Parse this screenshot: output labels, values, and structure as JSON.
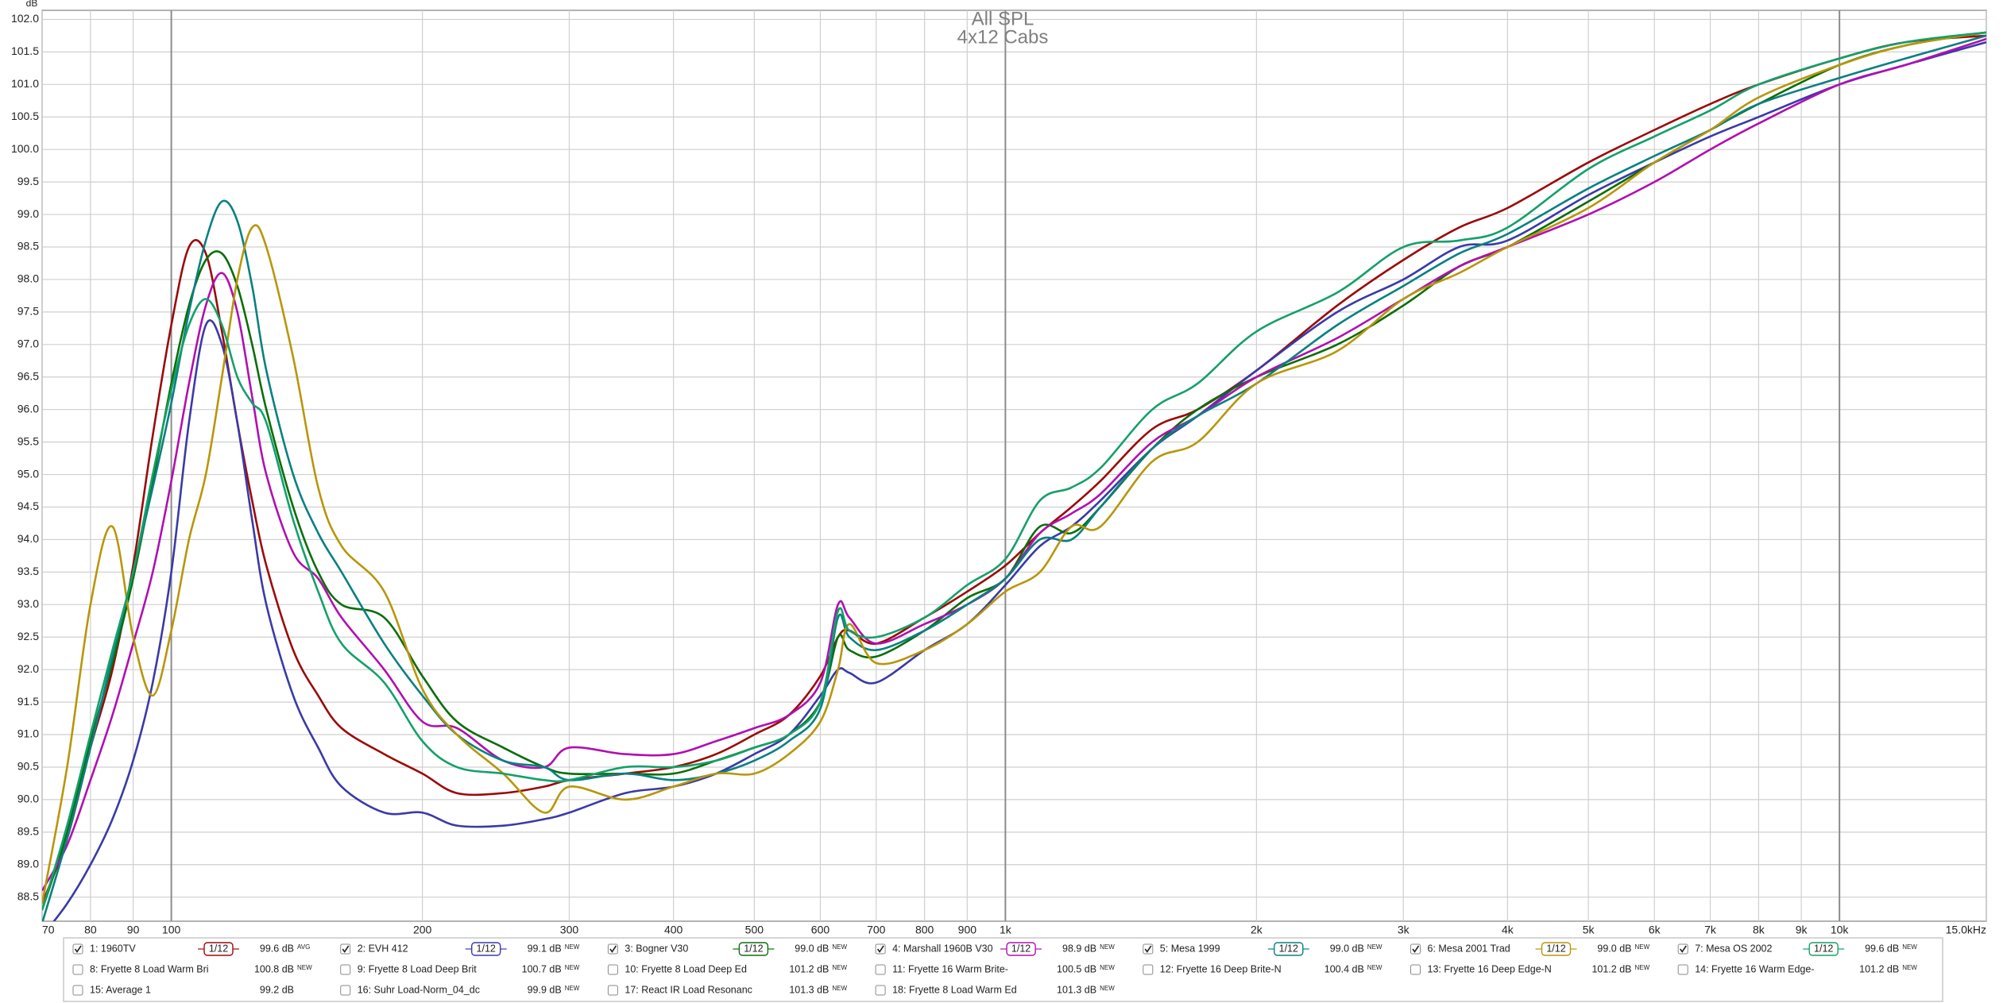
{
  "chart_data": {
    "type": "line",
    "title": "All SPL",
    "subtitle": "4x12 Cabs",
    "y_unit": "dB",
    "log_x": true,
    "grid": true,
    "xlim": [
      70,
      15000
    ],
    "ylim": [
      88.13,
      102.14
    ],
    "xticks": [
      70,
      80,
      90,
      100,
      200,
      300,
      400,
      500,
      600,
      700,
      800,
      900,
      {
        "value": 1000,
        "label": "1k"
      },
      {
        "value": 2000,
        "label": "2k"
      },
      {
        "value": 3000,
        "label": "3k"
      },
      {
        "value": 4000,
        "label": "4k"
      },
      {
        "value": 5000,
        "label": "5k"
      },
      {
        "value": 6000,
        "label": "6k"
      },
      {
        "value": 7000,
        "label": "7k"
      },
      {
        "value": 8000,
        "label": "8k"
      },
      {
        "value": 9000,
        "label": "9k"
      },
      {
        "value": 10000,
        "label": "10k"
      },
      {
        "value": 15000,
        "label": "15.0kHz"
      }
    ],
    "yticks": [
      88.5,
      {
        "value": 89,
        "label": "89.0"
      },
      89.5,
      {
        "value": 90,
        "label": "90.0"
      },
      90.5,
      {
        "value": 91,
        "label": "91.0"
      },
      91.5,
      {
        "value": 92,
        "label": "92.0"
      },
      92.5,
      {
        "value": 93,
        "label": "93.0"
      },
      93.5,
      {
        "value": 94,
        "label": "94.0"
      },
      94.5,
      {
        "value": 95,
        "label": "95.0"
      },
      95.5,
      {
        "value": 96,
        "label": "96.0"
      },
      96.5,
      {
        "value": 97,
        "label": "97.0"
      },
      97.5,
      {
        "value": 98,
        "label": "98.0"
      },
      98.5,
      {
        "value": 99,
        "label": "99.0"
      },
      99.5,
      {
        "value": 100,
        "label": "100.0"
      },
      100.5,
      {
        "value": 101,
        "label": "101.0"
      },
      101.5,
      {
        "value": 102,
        "label": "102.0"
      }
    ],
    "x": [
      70,
      75,
      80,
      85,
      90,
      95,
      100,
      105,
      110,
      115,
      120,
      125,
      130,
      140,
      150,
      160,
      180,
      200,
      220,
      250,
      280,
      300,
      350,
      400,
      450,
      500,
      550,
      600,
      630,
      650,
      700,
      800,
      900,
      1000,
      1100,
      1200,
      1300,
      1500,
      1700,
      2000,
      2500,
      3000,
      3500,
      4000,
      5000,
      6000,
      7000,
      8000,
      10000,
      12000,
      15000
    ],
    "series": [
      {
        "name": "1: 1960TV",
        "color": "#9b0a0a",
        "checked": true,
        "smoothing": "1/12",
        "level": "99.6 dB",
        "tag": "AVG",
        "values": [
          88.4,
          89.4,
          90.8,
          92.0,
          93.6,
          95.6,
          97.3,
          98.5,
          98.4,
          97.2,
          95.8,
          94.6,
          93.6,
          92.3,
          91.6,
          91.1,
          90.7,
          90.4,
          90.1,
          90.1,
          90.2,
          90.3,
          90.4,
          90.5,
          90.7,
          91.0,
          91.3,
          91.9,
          92.5,
          92.6,
          92.4,
          92.8,
          93.2,
          93.6,
          94.1,
          94.5,
          94.9,
          95.7,
          96.0,
          96.6,
          97.6,
          98.3,
          98.8,
          99.1,
          99.8,
          100.3,
          100.7,
          101.0,
          101.4,
          101.65,
          101.75
        ]
      },
      {
        "name": "2: EVH 412",
        "color": "#3a3aa8",
        "checked": true,
        "smoothing": "1/12",
        "level": "99.1 dB",
        "tag": "NEW",
        "values": [
          87.9,
          88.4,
          89.0,
          89.7,
          90.6,
          91.8,
          93.5,
          95.8,
          97.3,
          97.0,
          95.8,
          94.3,
          93.0,
          91.6,
          90.8,
          90.2,
          89.8,
          89.8,
          89.6,
          89.6,
          89.7,
          89.8,
          90.1,
          90.2,
          90.4,
          90.7,
          91.0,
          91.6,
          92.0,
          91.95,
          91.8,
          92.3,
          92.7,
          93.3,
          93.9,
          94.2,
          94.6,
          95.4,
          95.9,
          96.6,
          97.5,
          98.0,
          98.5,
          98.6,
          99.3,
          99.8,
          100.2,
          100.5,
          101.0,
          101.3,
          101.65
        ]
      },
      {
        "name": "3: Bogner V30",
        "color": "#0a6e0a",
        "checked": true,
        "smoothing": "1/12",
        "level": "99.0 dB",
        "tag": "NEW",
        "values": [
          88.3,
          89.5,
          90.9,
          92.1,
          93.4,
          94.9,
          96.4,
          97.6,
          98.3,
          98.4,
          97.9,
          97.0,
          96.0,
          94.5,
          93.5,
          93.0,
          92.8,
          91.9,
          91.2,
          90.8,
          90.5,
          90.4,
          90.4,
          90.4,
          90.6,
          90.8,
          91.0,
          91.5,
          92.5,
          92.3,
          92.2,
          92.6,
          93.1,
          93.4,
          94.2,
          94.1,
          94.5,
          95.4,
          96.0,
          96.5,
          97.0,
          97.6,
          98.2,
          98.5,
          99.2,
          99.8,
          100.3,
          100.7,
          101.3,
          101.6,
          101.8
        ]
      },
      {
        "name": "4: Marshall 1960B V30",
        "color": "#b010b0",
        "checked": true,
        "smoothing": "1/12",
        "level": "98.9 dB",
        "tag": "NEW",
        "values": [
          88.6,
          89.3,
          90.3,
          91.3,
          92.4,
          93.5,
          94.9,
          96.4,
          97.6,
          98.1,
          97.5,
          96.2,
          95.0,
          93.8,
          93.4,
          92.8,
          92.0,
          91.2,
          91.1,
          90.6,
          90.5,
          90.8,
          90.7,
          90.7,
          90.9,
          91.1,
          91.3,
          91.8,
          93.0,
          92.8,
          92.4,
          92.7,
          93.0,
          93.4,
          94.1,
          94.4,
          94.7,
          95.5,
          95.9,
          96.5,
          97.1,
          97.7,
          98.2,
          98.5,
          99.0,
          99.5,
          100.0,
          100.4,
          101.0,
          101.3,
          101.7
        ]
      },
      {
        "name": "5: Mesa 1999",
        "color": "#0a8080",
        "checked": true,
        "smoothing": "1/12",
        "level": "99.0 dB",
        "tag": "NEW",
        "values": [
          88.1,
          89.4,
          90.8,
          92.2,
          93.5,
          94.8,
          96.1,
          97.5,
          98.6,
          99.2,
          98.9,
          97.9,
          96.6,
          95.0,
          94.1,
          93.5,
          92.4,
          91.6,
          91.0,
          90.6,
          90.5,
          90.3,
          90.4,
          90.3,
          90.4,
          90.6,
          90.9,
          91.4,
          92.8,
          92.5,
          92.3,
          92.6,
          93.0,
          93.4,
          94.0,
          94.0,
          94.5,
          95.4,
          95.9,
          96.4,
          97.3,
          97.9,
          98.4,
          98.7,
          99.4,
          99.9,
          100.3,
          100.7,
          101.1,
          101.4,
          101.75
        ]
      },
      {
        "name": "6: Mesa 2001 Trad",
        "color": "#b8960a",
        "checked": true,
        "smoothing": "1/12",
        "level": "99.0 dB",
        "tag": "NEW",
        "values": [
          88.4,
          90.5,
          93.0,
          94.2,
          92.5,
          91.6,
          92.6,
          94.0,
          95.0,
          96.5,
          98.0,
          98.8,
          98.5,
          96.8,
          94.8,
          93.9,
          93.2,
          91.7,
          91.0,
          90.4,
          89.8,
          90.2,
          90.0,
          90.2,
          90.4,
          90.4,
          90.7,
          91.2,
          92.0,
          92.7,
          92.1,
          92.3,
          92.7,
          93.2,
          93.5,
          94.2,
          94.2,
          95.2,
          95.5,
          96.4,
          96.9,
          97.7,
          98.1,
          98.5,
          99.1,
          99.8,
          100.3,
          100.8,
          101.3,
          101.6,
          101.8
        ]
      },
      {
        "name": "7: Mesa OS 2002",
        "color": "#14a06a",
        "checked": true,
        "smoothing": "1/12",
        "level": "99.6 dB",
        "tag": "NEW",
        "values": [
          88.3,
          89.6,
          91.0,
          92.3,
          93.5,
          95.0,
          96.3,
          97.3,
          97.7,
          97.3,
          96.5,
          96.1,
          95.8,
          94.3,
          93.2,
          92.4,
          91.8,
          90.9,
          90.5,
          90.4,
          90.3,
          90.3,
          90.5,
          90.5,
          90.6,
          90.8,
          91.0,
          91.5,
          92.9,
          92.6,
          92.5,
          92.8,
          93.3,
          93.7,
          94.6,
          94.8,
          95.1,
          96.0,
          96.4,
          97.2,
          97.8,
          98.5,
          98.6,
          98.8,
          99.7,
          100.2,
          100.6,
          101.0,
          101.4,
          101.65,
          101.8
        ]
      }
    ],
    "hidden_series": [
      {
        "name": "8: Fryette 8 Load Warm Bri",
        "color": "#4a3ab0",
        "checked": false,
        "level": "100.8 dB",
        "tag": "NEW"
      },
      {
        "name": "9: Fryette 8 Load Deep Brit",
        "color": "#9b0a0a",
        "checked": false,
        "level": "100.7 dB",
        "tag": "NEW"
      },
      {
        "name": "10: Fryette 8 Load Deep Ed",
        "color": "#0a6e0a",
        "checked": false,
        "level": "101.2 dB",
        "tag": "NEW"
      },
      {
        "name": "11: Fryette 16 Warm Brite-",
        "color": "#14a06a",
        "checked": false,
        "level": "100.5 dB",
        "tag": "NEW"
      },
      {
        "name": "12: Fryette 16 Deep Brite-N",
        "color": "#0a7080",
        "checked": false,
        "level": "100.4 dB",
        "tag": "NEW"
      },
      {
        "name": "13: Fryette 16 Deep Edge-N",
        "color": "#b8960a",
        "checked": false,
        "level": "101.2 dB",
        "tag": "NEW"
      },
      {
        "name": "14: Fryette 16 Warm Edge-",
        "color": "#8a10a0",
        "checked": false,
        "level": "101.2 dB",
        "tag": "NEW"
      },
      {
        "name": "15: Average 1",
        "color": "#c010c0",
        "checked": false,
        "level": "99.2 dB"
      },
      {
        "name": "16: Suhr Load-Norm_04_dc",
        "color": "#1070a0",
        "checked": false,
        "level": "99.9 dB",
        "tag": "NEW"
      },
      {
        "name": "17: React IR Load Resonanc",
        "color": "#70d070",
        "checked": false,
        "level": "101.3 dB",
        "tag": "NEW"
      },
      {
        "name": "18: Fryette 8 Load Warm Ed",
        "color": "#a0108a",
        "checked": false,
        "level": "101.3 dB",
        "tag": "NEW"
      }
    ]
  }
}
